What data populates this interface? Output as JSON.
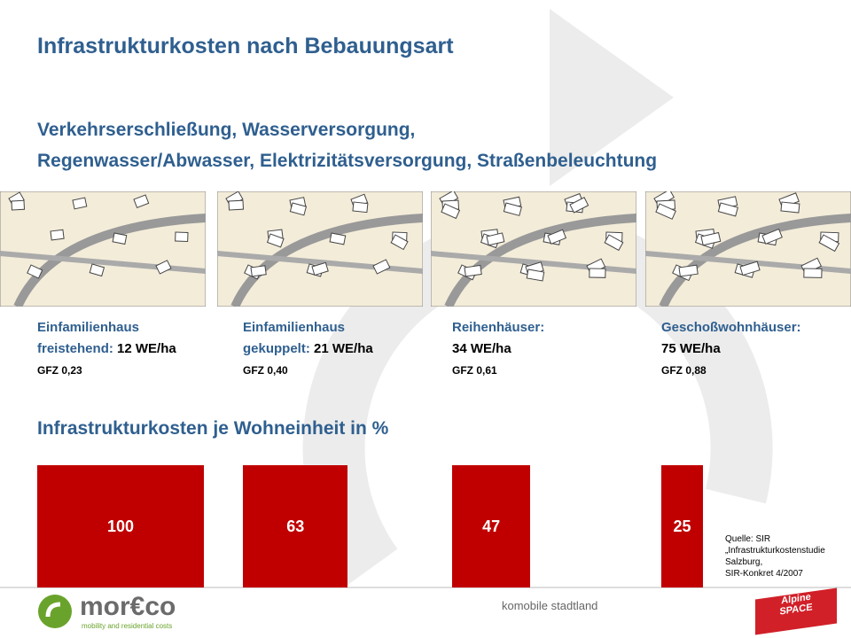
{
  "header": {
    "title": "Infrastrukturkosten nach Bebauungsart",
    "subtitle_lines": [
      "Verkehrserschließung, Wasserversorgung,",
      "Regenwasser/Abwasser, Elektrizitätsversorgung, Straßenbeleuchtung"
    ]
  },
  "types": [
    {
      "line1": "Einfamilienhaus",
      "line2": "freistehend:",
      "density": "12 WE/ha",
      "gfz": "GFZ 0,23"
    },
    {
      "line1": "Einfamilienhaus",
      "line2": "gekuppelt:",
      "density": "21 WE/ha",
      "gfz": "GFZ 0,40"
    },
    {
      "line1": "Reihenhäuser:",
      "line2": null,
      "density": "34 WE/ha",
      "gfz": "GFZ 0,61"
    },
    {
      "line1": "Geschoßwohnhäuser:",
      "line2": null,
      "density": "75 WE/ha",
      "gfz": "GFZ 0,88"
    }
  ],
  "chart": {
    "title": "Infrastrukturkosten je Wohneinheit in %",
    "values": [
      100,
      63,
      47,
      25
    ],
    "color": "#c00000"
  },
  "source": [
    "Quelle: SIR",
    "„Infrastrukturkostenstudie",
    "Salzburg,",
    "SIR-Konkret 4/2007"
  ],
  "footer": {
    "center": "komobile stadtland",
    "logo": "mor€co",
    "logo_tagline": "mobility and residential costs",
    "partner_logo": [
      "Alpine",
      "SPACE"
    ]
  }
}
